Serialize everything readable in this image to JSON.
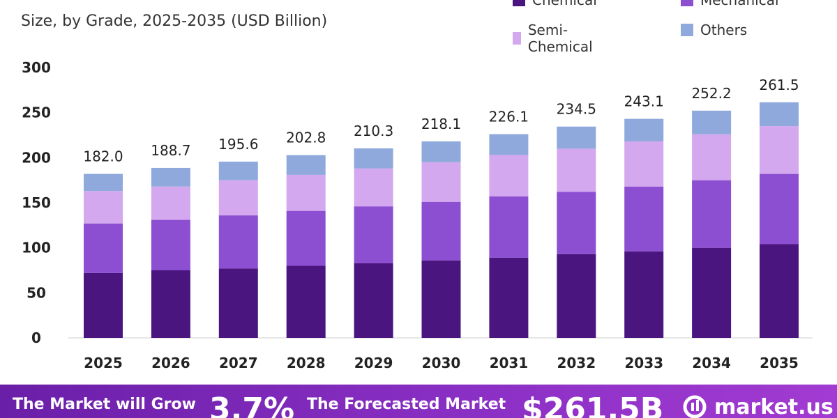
{
  "header": {
    "subtitle": "Size, by Grade, 2025-2035 (USD Billion)"
  },
  "legend": [
    {
      "label": "Chemical",
      "color": "#4b1580"
    },
    {
      "label": "Mechanical",
      "color": "#8d4fd2"
    },
    {
      "label": "Semi-Chemical",
      "color": "#d4a8ee"
    },
    {
      "label": "Others",
      "color": "#8fa9dc"
    }
  ],
  "chart_data": {
    "type": "bar",
    "stacked": true,
    "categories": [
      "2025",
      "2026",
      "2027",
      "2028",
      "2029",
      "2030",
      "2031",
      "2032",
      "2033",
      "2034",
      "2035"
    ],
    "series": [
      {
        "name": "Chemical",
        "values": [
          72,
          75,
          77,
          80,
          83,
          86,
          89,
          93,
          96,
          100,
          104
        ]
      },
      {
        "name": "Mechanical",
        "values": [
          55,
          56,
          59,
          61,
          63,
          65,
          68,
          69,
          72,
          75,
          78
        ]
      },
      {
        "name": "Semi-Chemical",
        "values": [
          36,
          37,
          39,
          40,
          42,
          44,
          46,
          48,
          50,
          51,
          53
        ]
      },
      {
        "name": "Others",
        "values": [
          19,
          20.7,
          20.6,
          21.8,
          22.3,
          23.1,
          23.1,
          24.5,
          25.1,
          26.2,
          26.5
        ]
      }
    ],
    "totals": [
      "182.0",
      "188.7",
      "195.6",
      "202.8",
      "210.3",
      "218.1",
      "226.1",
      "234.5",
      "243.1",
      "252.2",
      "261.5"
    ],
    "yticks": [
      0,
      50,
      100,
      150,
      200,
      250,
      300
    ],
    "ylim": [
      0,
      300
    ],
    "grid": false,
    "legend_position": "top-right"
  },
  "footer": {
    "grow_text": "The Market will Grow",
    "cagr": "3.7%",
    "forecast_text": "The Forecasted Market",
    "market_value": "$261.5B",
    "brand": "market.us"
  }
}
